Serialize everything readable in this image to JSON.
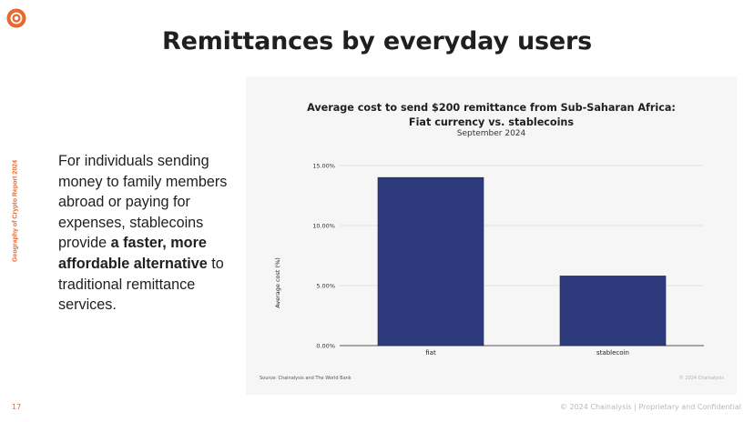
{
  "page": {
    "logo_icon": "chainalysis-logo-icon",
    "side_label": "Geography of Crypto Report 2024",
    "title": "Remittances by everyday users",
    "body": {
      "part1": "For individuals sending money to family members abroad or paying for expenses, stablecoins provide ",
      "bold": "a faster, more affordable alternative",
      "part2": " to traditional remittance services."
    },
    "page_number": "17",
    "footer": "© 2024 Chainalysis | Proprietary and Confidential",
    "accent_color": "#e8692d"
  },
  "chart_data": {
    "type": "bar",
    "title_line1": "Average cost to send $200 remittance from Sub-Saharan Africa:",
    "title_line2": "Fiat currency vs. stablecoins",
    "subtitle": "September 2024",
    "categories": [
      "fiat",
      "stablecoin"
    ],
    "values": [
      14.0,
      5.8
    ],
    "ylabel": "Average cost (%)",
    "ylim": [
      0,
      15
    ],
    "yticks": [
      0,
      5,
      10,
      15
    ],
    "ytick_labels": [
      "0.00%",
      "5.00%",
      "10.00%",
      "15.00%"
    ],
    "grid": true,
    "bar_color": "#2d3a7c",
    "source": "Source: Chainalysis and The World Bank",
    "copyright": "© 2024 Chainalysis"
  }
}
